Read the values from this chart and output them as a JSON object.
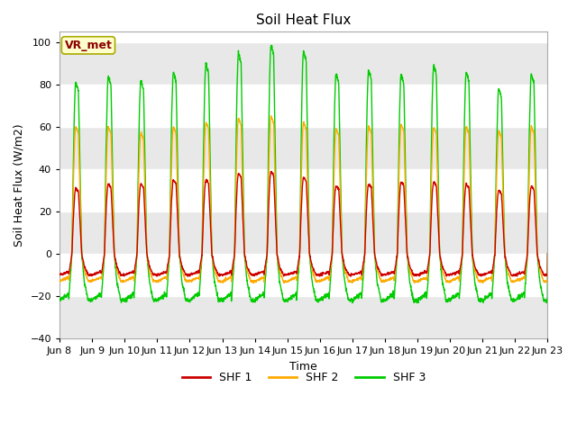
{
  "title": "Soil Heat Flux",
  "ylabel": "Soil Heat Flux (W/m2)",
  "xlabel": "Time",
  "ylim": [
    -40,
    105
  ],
  "yticks": [
    -40,
    -20,
    0,
    20,
    40,
    60,
    80,
    100
  ],
  "color_shf1": "#cc0000",
  "color_shf2": "#ffaa00",
  "color_shf3": "#00cc00",
  "legend_labels": [
    "SHF 1",
    "SHF 2",
    "SHF 3"
  ],
  "annotation_text": "VR_met",
  "annotation_bbox_facecolor": "#ffffcc",
  "annotation_bbox_edgecolor": "#aaaa00",
  "x_tick_labels": [
    "Jun 8",
    "Jun 9",
    "Jun 10",
    "Jun 11",
    "Jun 12",
    "Jun 13",
    "Jun 14",
    "Jun 15",
    "Jun 16",
    "Jun 17",
    "Jun 18",
    "Jun 19",
    "Jun 20",
    "Jun 21",
    "Jun 22",
    "Jun 23"
  ],
  "background_color": "#ffffff",
  "plot_bg_color": "#ffffff",
  "n_days": 15,
  "shf1_day_peaks": [
    31,
    33,
    33,
    35,
    35,
    38,
    39,
    36,
    32,
    33,
    34,
    34,
    33,
    30,
    32
  ],
  "shf2_day_peaks": [
    60,
    60,
    57,
    60,
    62,
    64,
    65,
    62,
    59,
    60,
    61,
    60,
    60,
    58,
    60
  ],
  "shf3_day_peaks": [
    81,
    84,
    82,
    86,
    90,
    95,
    99,
    96,
    85,
    87,
    85,
    89,
    86,
    78,
    85
  ],
  "shf1_night_min": -10,
  "shf2_night_min": -13,
  "shf3_night_min": -22,
  "grid_color": "#dddddd",
  "band_color": "#e8e8e8"
}
